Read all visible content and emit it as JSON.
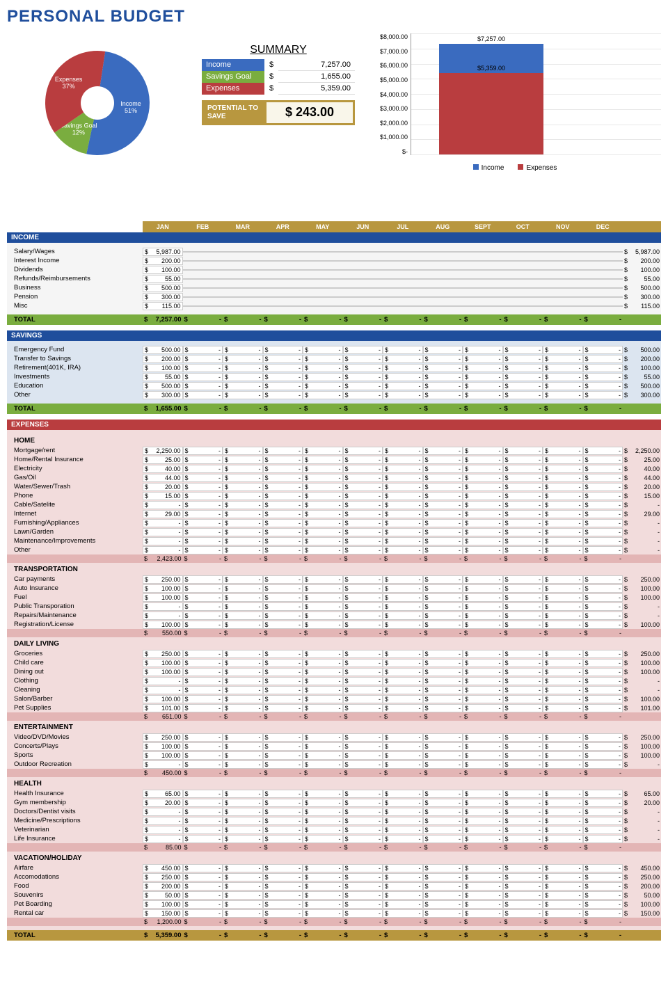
{
  "title": "PERSONAL BUDGET",
  "colors": {
    "income": "#3a6bbf",
    "savings": "#7aad3f",
    "expenses": "#b93d3f",
    "gold": "#b8973f",
    "header_blue": "#1f4e9c"
  },
  "pie": {
    "slices": [
      {
        "label": "Income",
        "pct": 51,
        "color": "#3a6bbf",
        "labelText": "Income\n51%"
      },
      {
        "label": "Savings Goal",
        "pct": 12,
        "color": "#7aad3f",
        "labelText": "Savings Goal\n12%"
      },
      {
        "label": "Expenses",
        "pct": 37,
        "color": "#b93d3f",
        "labelText": "Expenses\n37%"
      }
    ],
    "inner_radius_ratio": 0.32
  },
  "summary": {
    "title": "SUMMARY",
    "rows": [
      {
        "label": "Income",
        "value": "7,257.00",
        "color": "#3a6bbf"
      },
      {
        "label": "Savings Goal",
        "value": "1,655.00",
        "color": "#7aad3f"
      },
      {
        "label": "Expenses",
        "value": "5,359.00",
        "color": "#b93d3f"
      }
    ],
    "potential_label": "POTENTIAL TO SAVE",
    "potential_value": "$ 243.00"
  },
  "bar_chart": {
    "ymax": 8000,
    "ystep": 1000,
    "yticks": [
      "$8,000.00",
      "$7,000.00",
      "$6,000.00",
      "$5,000.00",
      "$4,000.00",
      "$3,000.00",
      "$2,000.00",
      "$1,000.00",
      "$-"
    ],
    "income_value": 7257,
    "income_label": "$7,257.00",
    "expenses_value": 5359,
    "expenses_label": "$5,359.00",
    "legend": [
      {
        "label": "Income",
        "color": "#3a6bbf"
      },
      {
        "label": "Expenses",
        "color": "#b93d3f"
      }
    ]
  },
  "months": [
    "JAN",
    "FEB",
    "MAR",
    "APR",
    "MAY",
    "JUN",
    "JUL",
    "AUG",
    "SEPT",
    "OCT",
    "NOV",
    "DEC"
  ],
  "sections": {
    "income": {
      "title": "INCOME",
      "rows": [
        {
          "label": "Salary/Wages",
          "jan": "5,987.00",
          "total": "5,987.00"
        },
        {
          "label": "Interest Income",
          "jan": "200.00",
          "total": "200.00"
        },
        {
          "label": "Dividends",
          "jan": "100.00",
          "total": "100.00"
        },
        {
          "label": "Refunds/Reimbursements",
          "jan": "55.00",
          "total": "55.00"
        },
        {
          "label": "Business",
          "jan": "500.00",
          "total": "500.00"
        },
        {
          "label": "Pension",
          "jan": "300.00",
          "total": "300.00"
        },
        {
          "label": "Misc",
          "jan": "115.00",
          "total": "115.00"
        }
      ],
      "total_label": "TOTAL",
      "total_jan": "7,257.00"
    },
    "savings": {
      "title": "SAVINGS",
      "rows": [
        {
          "label": "Emergency Fund",
          "jan": "500.00",
          "total": "500.00"
        },
        {
          "label": "Transfer to Savings",
          "jan": "200.00",
          "total": "200.00"
        },
        {
          "label": "Retirement(401K, IRA)",
          "jan": "100.00",
          "total": "100.00"
        },
        {
          "label": "Investments",
          "jan": "55.00",
          "total": "55.00"
        },
        {
          "label": "Education",
          "jan": "500.00",
          "total": "500.00"
        },
        {
          "label": "Other",
          "jan": "300.00",
          "total": "300.00"
        }
      ],
      "total_label": "TOTAL",
      "total_jan": "1,655.00"
    },
    "expenses": {
      "title": "EXPENSES",
      "categories": [
        {
          "name": "HOME",
          "rows": [
            {
              "label": "Mortgage/rent",
              "jan": "2,250.00",
              "total": "2,250.00"
            },
            {
              "label": "Home/Rental Insurance",
              "jan": "25.00",
              "total": "25.00"
            },
            {
              "label": "Electricity",
              "jan": "40.00",
              "total": "40.00"
            },
            {
              "label": "Gas/Oil",
              "jan": "44.00",
              "total": "44.00"
            },
            {
              "label": "Water/Sewer/Trash",
              "jan": "20.00",
              "total": "20.00"
            },
            {
              "label": "Phone",
              "jan": "15.00",
              "total": "15.00"
            },
            {
              "label": "Cable/Satelite",
              "jan": "-",
              "total": "-"
            },
            {
              "label": "Internet",
              "jan": "29.00",
              "total": "29.00"
            },
            {
              "label": "Furnishing/Appliances",
              "jan": "-",
              "total": "-"
            },
            {
              "label": "Lawn/Garden",
              "jan": "-",
              "total": "-"
            },
            {
              "label": "Maintenance/Improvements",
              "jan": "-",
              "total": "-"
            },
            {
              "label": "Other",
              "jan": "-",
              "total": "-"
            }
          ],
          "subtotal": "2,423.00"
        },
        {
          "name": "TRANSPORTATION",
          "rows": [
            {
              "label": "Car payments",
              "jan": "250.00",
              "total": "250.00"
            },
            {
              "label": "Auto Insurance",
              "jan": "100.00",
              "total": "100.00"
            },
            {
              "label": "Fuel",
              "jan": "100.00",
              "total": "100.00"
            },
            {
              "label": "Public Transporation",
              "jan": "-",
              "total": "-"
            },
            {
              "label": "Repairs/Maintenance",
              "jan": "-",
              "total": "-"
            },
            {
              "label": "Registration/License",
              "jan": "100.00",
              "total": "100.00"
            }
          ],
          "subtotal": "550.00"
        },
        {
          "name": "DAILY LIVING",
          "rows": [
            {
              "label": "Groceries",
              "jan": "250.00",
              "total": "250.00"
            },
            {
              "label": "Child care",
              "jan": "100.00",
              "total": "100.00"
            },
            {
              "label": "Dining out",
              "jan": "100.00",
              "total": "100.00"
            },
            {
              "label": "Clothing",
              "jan": "-",
              "total": "-"
            },
            {
              "label": "Cleaning",
              "jan": "-",
              "total": "-"
            },
            {
              "label": "Salon/Barber",
              "jan": "100.00",
              "total": "100.00"
            },
            {
              "label": "Pet Supplies",
              "jan": "101.00",
              "total": "101.00"
            }
          ],
          "subtotal": "651.00"
        },
        {
          "name": "ENTERTAINMENT",
          "rows": [
            {
              "label": "Video/DVD/Movies",
              "jan": "250.00",
              "total": "250.00"
            },
            {
              "label": "Concerts/Plays",
              "jan": "100.00",
              "total": "100.00"
            },
            {
              "label": "Sports",
              "jan": "100.00",
              "total": "100.00"
            },
            {
              "label": "Outdoor Recreation",
              "jan": "-",
              "total": "-"
            }
          ],
          "subtotal": "450.00"
        },
        {
          "name": "HEALTH",
          "rows": [
            {
              "label": "Health Insurance",
              "jan": "65.00",
              "total": "65.00"
            },
            {
              "label": "Gym membership",
              "jan": "20.00",
              "total": "20.00"
            },
            {
              "label": "Doctors/Dentist visits",
              "jan": "-",
              "total": "-"
            },
            {
              "label": "Medicine/Prescriptions",
              "jan": "-",
              "total": "-"
            },
            {
              "label": "Veterinarian",
              "jan": "-",
              "total": "-"
            },
            {
              "label": "Life Insurance",
              "jan": "-",
              "total": "-"
            }
          ],
          "subtotal": "85.00"
        },
        {
          "name": "VACATION/HOLIDAY",
          "rows": [
            {
              "label": "Airfare",
              "jan": "450.00",
              "total": "450.00"
            },
            {
              "label": "Accomodations",
              "jan": "250.00",
              "total": "250.00"
            },
            {
              "label": "Food",
              "jan": "200.00",
              "total": "200.00"
            },
            {
              "label": "Souvenirs",
              "jan": "50.00",
              "total": "50.00"
            },
            {
              "label": "Pet Boarding",
              "jan": "100.00",
              "total": "100.00"
            },
            {
              "label": "Rental car",
              "jan": "150.00",
              "total": "150.00"
            }
          ],
          "subtotal": "1,200.00"
        }
      ],
      "grand_total_label": "TOTAL",
      "grand_total_jan": "5,359.00"
    }
  }
}
